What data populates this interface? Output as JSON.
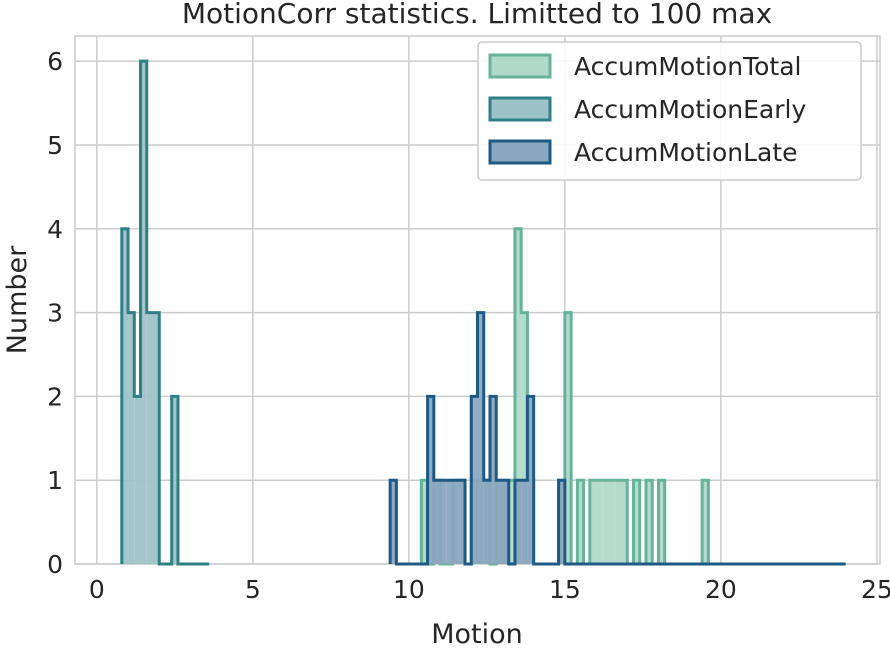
{
  "chart_data": {
    "type": "histogram",
    "title": "MotionCorr statistics. Limitted to 100 max",
    "xlabel": "Motion",
    "ylabel": "Number",
    "xlim": [
      -0.7,
      25.1
    ],
    "ylim": [
      0,
      6.3
    ],
    "xticks": [
      0,
      5,
      10,
      15,
      20,
      25
    ],
    "yticks": [
      0,
      1,
      2,
      3,
      4,
      5,
      6
    ],
    "grid": true,
    "legend_position": "top-right",
    "bin_width": 0.2,
    "series": [
      {
        "name": "AccumMotionTotal",
        "color": "#66b39a",
        "fill": "#b0d9c9",
        "bins": [
          [
            10.4,
            1
          ],
          [
            10.6,
            0
          ],
          [
            10.8,
            1
          ],
          [
            11.0,
            0
          ],
          [
            11.2,
            0
          ],
          [
            11.4,
            1
          ],
          [
            11.6,
            1
          ],
          [
            11.8,
            0
          ],
          [
            12.0,
            1
          ],
          [
            12.2,
            1
          ],
          [
            12.4,
            1
          ],
          [
            12.6,
            0
          ],
          [
            12.8,
            1
          ],
          [
            13.0,
            1
          ],
          [
            13.2,
            1
          ],
          [
            13.4,
            4
          ],
          [
            13.6,
            3
          ],
          [
            13.8,
            1
          ],
          [
            14.0,
            0
          ],
          [
            14.2,
            0
          ],
          [
            14.4,
            0
          ],
          [
            14.6,
            0
          ],
          [
            14.8,
            1
          ],
          [
            15.0,
            3
          ],
          [
            15.2,
            0
          ],
          [
            15.4,
            1
          ],
          [
            15.6,
            0
          ],
          [
            15.8,
            1
          ],
          [
            16.0,
            1
          ],
          [
            16.2,
            1
          ],
          [
            16.4,
            1
          ],
          [
            16.6,
            1
          ],
          [
            16.8,
            1
          ],
          [
            17.0,
            0
          ],
          [
            17.2,
            1
          ],
          [
            17.4,
            0
          ],
          [
            17.6,
            1
          ],
          [
            17.8,
            0
          ],
          [
            18.0,
            1
          ],
          [
            18.2,
            0
          ],
          [
            18.4,
            0
          ],
          [
            18.6,
            0
          ],
          [
            18.8,
            0
          ],
          [
            19.0,
            0
          ],
          [
            19.2,
            0
          ],
          [
            19.4,
            1
          ],
          [
            19.6,
            0
          ],
          [
            19.8,
            0
          ],
          [
            20.0,
            0
          ],
          [
            20.2,
            0
          ],
          [
            20.4,
            0
          ]
        ]
      },
      {
        "name": "AccumMotionEarly",
        "color": "#2e7f86",
        "fill": "#9dc3c6",
        "bins": [
          [
            0.8,
            4
          ],
          [
            1.0,
            3
          ],
          [
            1.2,
            2
          ],
          [
            1.4,
            6
          ],
          [
            1.6,
            3
          ],
          [
            1.8,
            3
          ],
          [
            2.0,
            0
          ],
          [
            2.2,
            0
          ],
          [
            2.4,
            2
          ],
          [
            2.6,
            0
          ],
          [
            2.8,
            0
          ],
          [
            3.0,
            0
          ],
          [
            3.2,
            0
          ],
          [
            3.4,
            0
          ]
        ]
      },
      {
        "name": "AccumMotionLate",
        "color": "#1d5a85",
        "fill": "#8aa6bf",
        "bins": [
          [
            9.4,
            1
          ],
          [
            9.6,
            0
          ],
          [
            9.8,
            0
          ],
          [
            10.0,
            0
          ],
          [
            10.2,
            0
          ],
          [
            10.4,
            0
          ],
          [
            10.6,
            2
          ],
          [
            10.8,
            1
          ],
          [
            11.0,
            1
          ],
          [
            11.2,
            1
          ],
          [
            11.4,
            1
          ],
          [
            11.6,
            1
          ],
          [
            11.8,
            0
          ],
          [
            12.0,
            2
          ],
          [
            12.2,
            3
          ],
          [
            12.4,
            1
          ],
          [
            12.6,
            2
          ],
          [
            12.8,
            1
          ],
          [
            13.0,
            1
          ],
          [
            13.2,
            0
          ],
          [
            13.4,
            1
          ],
          [
            13.6,
            1
          ],
          [
            13.8,
            2
          ],
          [
            14.0,
            0
          ],
          [
            14.2,
            0
          ],
          [
            14.4,
            0
          ],
          [
            14.6,
            0
          ],
          [
            14.8,
            1
          ],
          [
            15.0,
            0
          ],
          [
            15.2,
            0
          ],
          [
            15.4,
            0
          ],
          [
            15.6,
            0
          ],
          [
            15.8,
            0
          ],
          [
            16.0,
            0
          ],
          [
            16.2,
            0
          ],
          [
            16.4,
            0
          ],
          [
            16.6,
            0
          ],
          [
            16.8,
            0
          ],
          [
            17.0,
            0
          ],
          [
            17.2,
            0
          ],
          [
            17.4,
            0
          ],
          [
            17.6,
            0
          ],
          [
            17.8,
            0
          ],
          [
            18.0,
            0
          ],
          [
            18.2,
            0
          ],
          [
            18.4,
            0
          ],
          [
            18.6,
            0
          ],
          [
            18.8,
            0
          ],
          [
            19.0,
            0
          ],
          [
            19.2,
            0
          ],
          [
            19.4,
            0
          ],
          [
            19.6,
            0
          ],
          [
            19.8,
            0
          ],
          [
            20.0,
            0
          ],
          [
            20.2,
            0
          ],
          [
            20.4,
            0
          ],
          [
            20.6,
            0
          ],
          [
            20.8,
            0
          ],
          [
            21.0,
            0
          ],
          [
            21.2,
            0
          ],
          [
            21.4,
            0
          ],
          [
            21.6,
            0
          ],
          [
            21.8,
            0
          ],
          [
            22.0,
            0
          ],
          [
            22.2,
            0
          ],
          [
            22.4,
            0
          ],
          [
            22.6,
            0
          ],
          [
            22.8,
            0
          ],
          [
            23.0,
            0
          ],
          [
            23.2,
            0
          ],
          [
            23.4,
            0
          ],
          [
            23.6,
            0
          ],
          [
            23.8,
            0
          ]
        ]
      }
    ]
  }
}
